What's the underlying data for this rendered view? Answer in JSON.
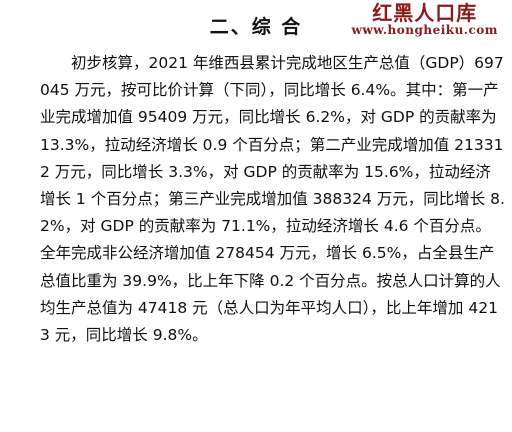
{
  "watermark": {
    "name": "红黑人口库",
    "url": "www.hongheiku.com"
  },
  "section": {
    "title": "二、综 合"
  },
  "paragraph": {
    "text": "初步核算，2021 年维西县累计完成地区生产总值（GDP）697045 万元，按可比价计算（下同），同比增长 6.4%。其中：第一产业完成增加值 95409 万元，同比增长 6.2%，对 GDP 的贡献率为 13.3%，拉动经济增长 0.9 个百分点；第二产业完成增加值 213312 万元，同比增长 3.3%，对 GDP 的贡献率为 15.6%，拉动经济增长 1 个百分点；第三产业完成增加值 388324 万元，同比增长 8.2%，对 GDP 的贡献率为 71.1%，拉动经济增长 4.6 个百分点。全年完成非公经济增加值 278454 万元，增长 6.5%，占全县生产总值比重为 39.9%，比上年下降 0.2 个百分点。按总人口计算的人均生产总值为 47418 元（总人口为年平均人口），比上年增加 4213 元，同比增长 9.8%。"
  }
}
